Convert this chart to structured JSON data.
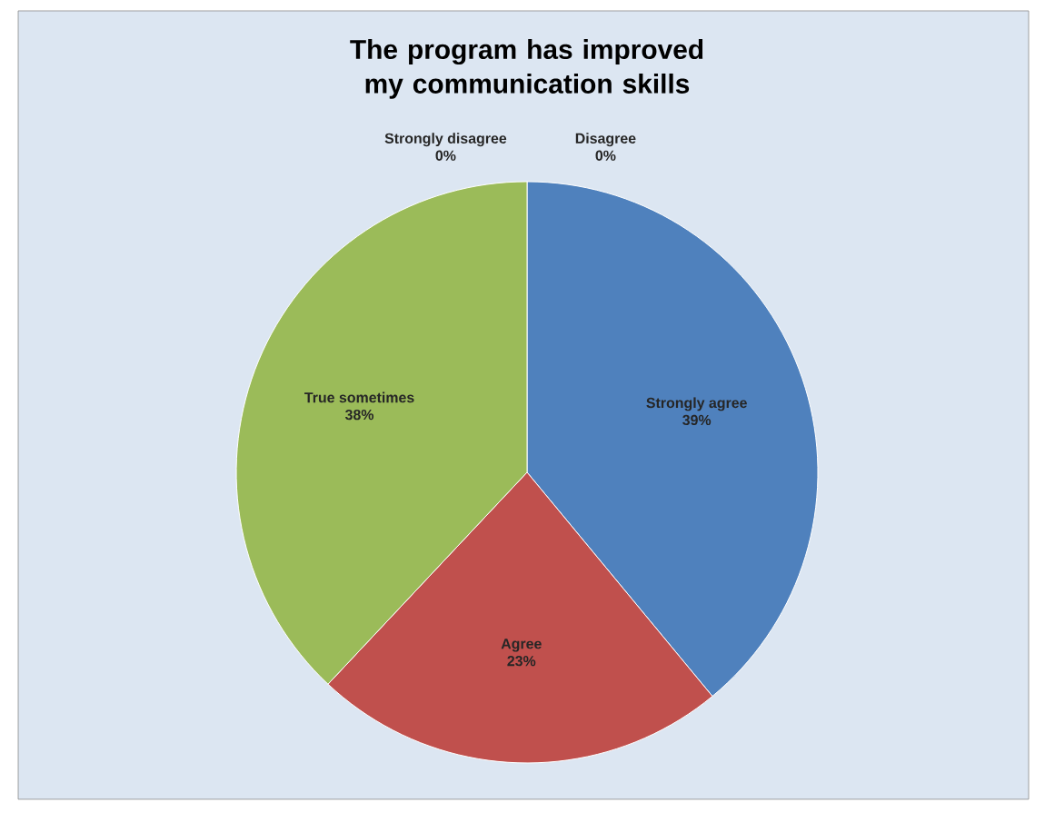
{
  "chart_data": {
    "type": "pie",
    "title": "The program has improved my communication skills",
    "categories": [
      "Strongly agree",
      "Agree",
      "True sometimes",
      "Strongly disagree",
      "Disagree"
    ],
    "values": [
      39,
      23,
      38,
      0,
      0
    ],
    "value_labels": [
      "39%",
      "23%",
      "38%",
      "0%",
      "0%"
    ],
    "colors": [
      "#4f81bd",
      "#c0504d",
      "#9bbb59",
      "#8064a2",
      "#4bacc6"
    ]
  }
}
